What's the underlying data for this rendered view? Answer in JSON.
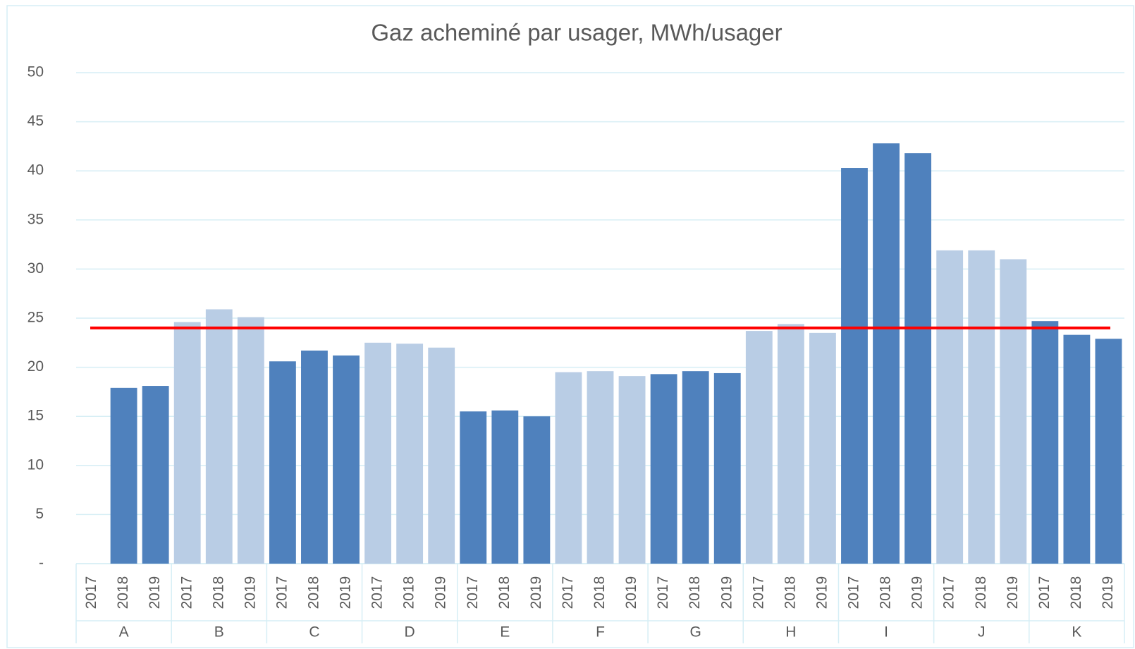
{
  "chart_data": {
    "type": "bar",
    "title": "Gaz acheminé par usager, MWh/usager",
    "categories": [
      "2017",
      "2018",
      "2019"
    ],
    "groups": [
      {
        "name": "A",
        "color": "#4f81bd",
        "values": [
          null,
          17.9,
          18.1
        ]
      },
      {
        "name": "B",
        "color": "#b9cde5",
        "values": [
          24.6,
          25.9,
          25.1
        ]
      },
      {
        "name": "C",
        "color": "#4f81bd",
        "values": [
          20.6,
          21.7,
          21.2
        ]
      },
      {
        "name": "D",
        "color": "#b9cde5",
        "values": [
          22.5,
          22.4,
          22.0
        ]
      },
      {
        "name": "E",
        "color": "#4f81bd",
        "values": [
          15.5,
          15.6,
          15.0
        ]
      },
      {
        "name": "F",
        "color": "#b9cde5",
        "values": [
          19.5,
          19.6,
          19.1
        ]
      },
      {
        "name": "G",
        "color": "#4f81bd",
        "values": [
          19.3,
          19.6,
          19.4
        ]
      },
      {
        "name": "H",
        "color": "#b9cde5",
        "values": [
          23.7,
          24.4,
          23.5
        ]
      },
      {
        "name": "I",
        "color": "#4f81bd",
        "values": [
          40.3,
          42.8,
          41.8
        ]
      },
      {
        "name": "J",
        "color": "#b9cde5",
        "values": [
          31.9,
          31.9,
          31.0
        ]
      },
      {
        "name": "K",
        "color": "#4f81bd",
        "values": [
          24.7,
          23.3,
          22.9
        ]
      }
    ],
    "reference_line": {
      "value": 24.0,
      "color": "#ff0000"
    },
    "ylim": [
      0,
      50
    ],
    "yticks": [
      {
        "value": 0,
        "label": "-"
      },
      5,
      10,
      15,
      20,
      25,
      30,
      35,
      40,
      45,
      50
    ],
    "grid": true
  }
}
